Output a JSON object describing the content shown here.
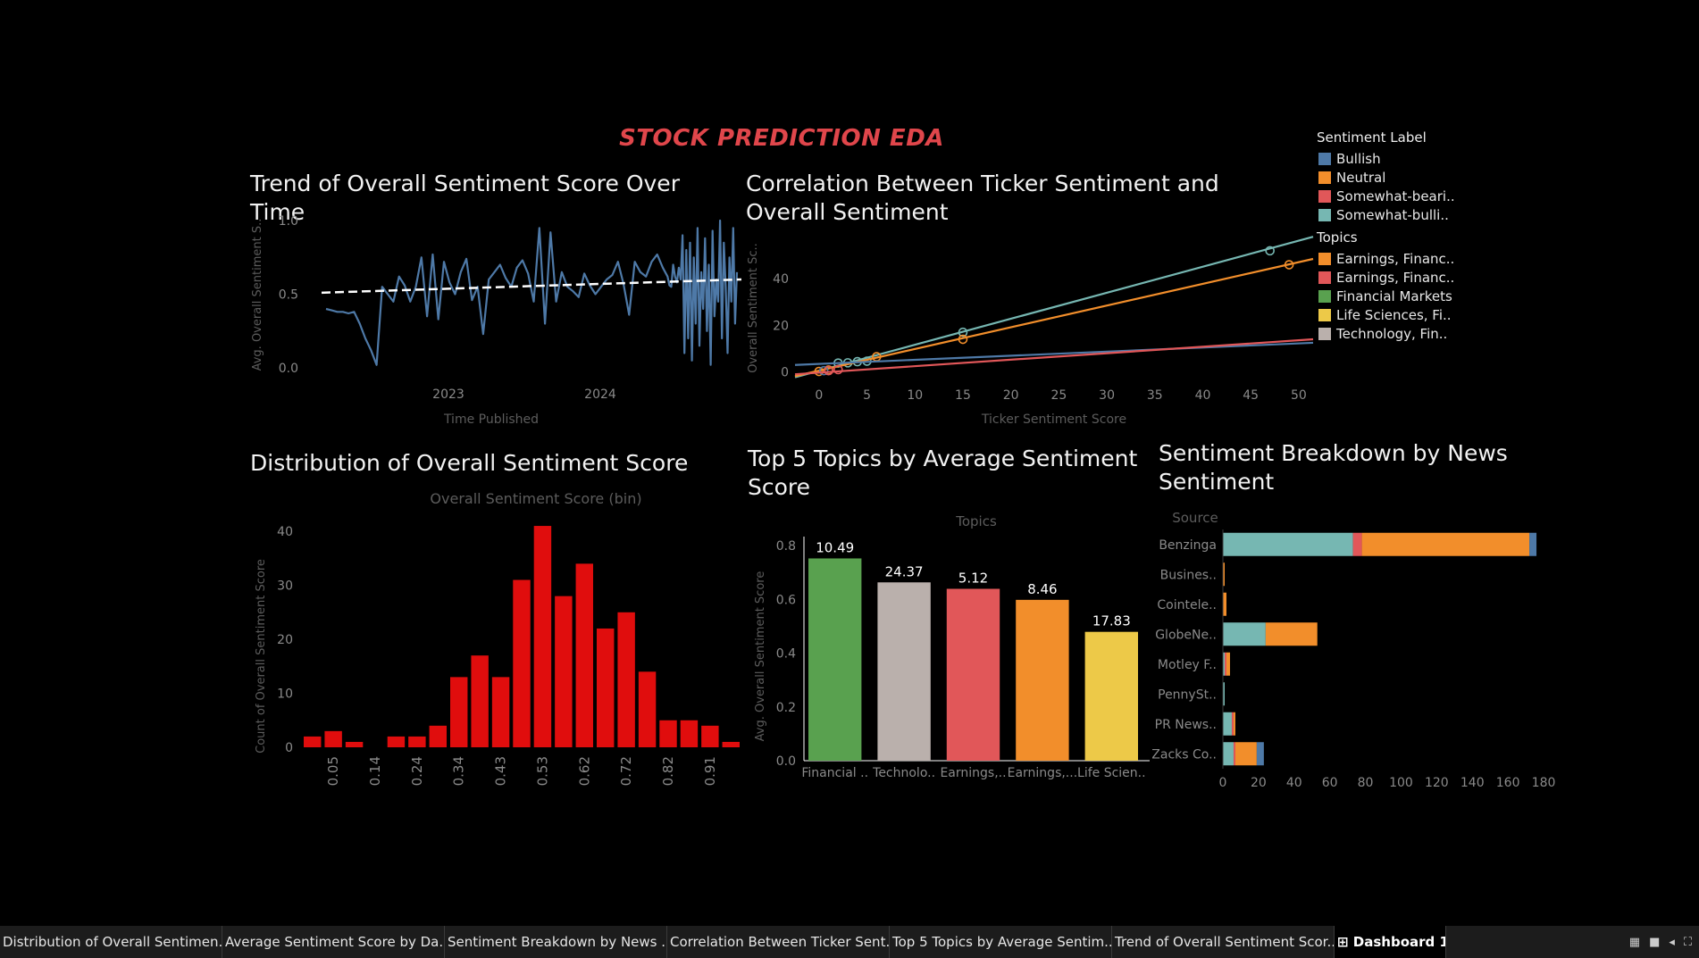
{
  "dashboard_title": "STOCK PREDICTION EDA",
  "colors": {
    "bullish": "#4e79a7",
    "neutral": "#f28e2b",
    "somewhat_bearish": "#e15759",
    "somewhat_bullish": "#76b7b2",
    "financial_markets": "#59a14f",
    "technology": "#bab0ac",
    "life_sciences": "#edc948",
    "hist_bar": "#e00d0d",
    "trend_line": "#4e79a7"
  },
  "legend": {
    "sentiment_title": "Sentiment Label",
    "sentiment_items": [
      {
        "label": "Bullish",
        "color": "#4e79a7"
      },
      {
        "label": "Neutral",
        "color": "#f28e2b"
      },
      {
        "label": "Somewhat-beari..",
        "color": "#e15759"
      },
      {
        "label": "Somewhat-bulli..",
        "color": "#76b7b2"
      }
    ],
    "topics_title": "Topics",
    "topic_items": [
      {
        "label": "Earnings, Financ..",
        "color": "#f28e2b"
      },
      {
        "label": "Earnings, Financ..",
        "color": "#e15759"
      },
      {
        "label": "Financial Markets",
        "color": "#59a14f"
      },
      {
        "label": "Life Sciences, Fi..",
        "color": "#edc948"
      },
      {
        "label": "Technology, Fin..",
        "color": "#bab0ac"
      }
    ]
  },
  "chart_data": [
    {
      "id": "trend",
      "type": "line",
      "title": "Trend of Overall Sentiment Score Over Time",
      "xlabel": "Time Published",
      "ylabel": "Avg. Overall Sentiment S..",
      "xticks": [
        "2023",
        "2024"
      ],
      "yticks": [
        "0.0",
        "0.5",
        "1.0"
      ],
      "ylim": [
        0,
        1
      ],
      "values": [
        0.4,
        0.39,
        0.38,
        0.38,
        0.37,
        0.38,
        0.3,
        0.2,
        0.12,
        0.02,
        0.55,
        0.5,
        0.45,
        0.62,
        0.56,
        0.45,
        0.55,
        0.75,
        0.35,
        0.77,
        0.33,
        0.72,
        0.58,
        0.5,
        0.65,
        0.74,
        0.46,
        0.55,
        0.23,
        0.6,
        0.65,
        0.7,
        0.61,
        0.55,
        0.68,
        0.73,
        0.64,
        0.45,
        0.95,
        0.3,
        0.92,
        0.45,
        0.65,
        0.55,
        0.52,
        0.48,
        0.64,
        0.56,
        0.5,
        0.55,
        0.6,
        0.63,
        0.72,
        0.57,
        0.36,
        0.72,
        0.65,
        0.62,
        0.72,
        0.77,
        0.68,
        0.62,
        0.56,
        0.55,
        0.7,
        0.62,
        0.58,
        0.68,
        0.6,
        0.9,
        0.1,
        0.8,
        0.2,
        0.85,
        0.05,
        0.75,
        0.3,
        0.95,
        0.15,
        0.65,
        0.4,
        0.88,
        0.25,
        0.7,
        0.02,
        0.93,
        0.35,
        0.6,
        0.45,
        1.0,
        0.2,
        0.85,
        0.55,
        0.1,
        0.75,
        0.45,
        0.95,
        0.3,
        0.65
      ],
      "trend_start": 0.51,
      "trend_end": 0.6
    },
    {
      "id": "correlation",
      "type": "scatter",
      "title": "Correlation Between Ticker Sentiment and Overall Sentiment",
      "xlabel": "Ticker Sentiment Score",
      "ylabel": "Overall Sentiment Sc..",
      "xticks": [
        0,
        5,
        10,
        15,
        20,
        25,
        30,
        35,
        40,
        45,
        50
      ],
      "yticks": [
        0,
        20,
        40
      ],
      "xlim": [
        -2.5,
        51.5
      ],
      "ylim": [
        -4,
        60
      ],
      "series": [
        {
          "color": "#76b7b2",
          "line": [
            [
              -2.5,
              -2.3
            ],
            [
              51.5,
              58
            ]
          ],
          "points": [
            [
              2,
              3.8
            ],
            [
              3,
              3.9
            ],
            [
              4,
              4.4
            ],
            [
              5,
              4.6
            ],
            [
              15,
              17
            ],
            [
              47,
              52
            ]
          ]
        },
        {
          "color": "#f28e2b",
          "line": [
            [
              -2.5,
              -1.8
            ],
            [
              51.5,
              48.5
            ]
          ],
          "points": [
            [
              0,
              0.2
            ],
            [
              1,
              0.8
            ],
            [
              6,
              6.5
            ],
            [
              15,
              14
            ],
            [
              49,
              46
            ]
          ]
        },
        {
          "color": "#4e79a7",
          "line": [
            [
              -2.5,
              3
            ],
            [
              51.5,
              12.5
            ]
          ],
          "points": [
            [
              0.5,
              0.5
            ]
          ]
        },
        {
          "color": "#e15759",
          "line": [
            [
              -2.5,
              -1
            ],
            [
              51.5,
              14
            ]
          ],
          "points": [
            [
              1,
              0.5
            ],
            [
              2,
              1
            ]
          ]
        }
      ]
    },
    {
      "id": "distribution",
      "type": "bar",
      "title": "Distribution of Overall Sentiment Score",
      "subtitle": "Overall Sentiment Score (bin)",
      "ylabel": "Count of Overall Sentiment Score",
      "xticks": [
        "0.05",
        "0.14",
        "0.24",
        "0.34",
        "0.43",
        "0.53",
        "0.62",
        "0.72",
        "0.82",
        "0.91"
      ],
      "yticks": [
        0,
        10,
        20,
        30,
        40
      ],
      "ylim": [
        0,
        42
      ],
      "values": [
        2,
        3,
        1,
        0,
        2,
        2,
        4,
        13,
        17,
        13,
        31,
        41,
        28,
        34,
        22,
        25,
        14,
        5,
        5,
        4,
        1
      ]
    },
    {
      "id": "topics",
      "type": "bar",
      "title": "Top 5 Topics by Average Sentiment Score",
      "subtitle": "Topics",
      "ylabel": "Avg. Overall Sentiment Score",
      "categories": [
        "Financial ..",
        "Technolo..",
        "Earnings,..",
        "Earnings,...",
        "Life Scien.."
      ],
      "values": [
        0.752,
        0.663,
        0.639,
        0.598,
        0.479
      ],
      "data_labels": [
        "10.49",
        "24.37",
        "5.12",
        "8.46",
        "17.83"
      ],
      "colors": [
        "#59a14f",
        "#bab0ac",
        "#e15759",
        "#f28e2b",
        "#edc948"
      ],
      "yticks": [
        "0.0",
        "0.2",
        "0.4",
        "0.6",
        "0.8"
      ],
      "ylim": [
        0,
        0.8
      ]
    },
    {
      "id": "breakdown",
      "type": "bar",
      "orientation": "horizontal",
      "stacked": true,
      "title": "Sentiment Breakdown by News Sentiment",
      "subtitle": "Source",
      "categories": [
        "Benzinga",
        "Busines..",
        "Cointele..",
        "GlobeNe..",
        "Motley F..",
        "PennySt..",
        "PR News..",
        "Zacks Co.."
      ],
      "xticks": [
        0,
        20,
        40,
        60,
        80,
        100,
        120,
        140,
        160,
        180
      ],
      "xlim": [
        0,
        185
      ],
      "series": [
        {
          "name": "Somewhat-bullish",
          "color": "#76b7b2",
          "values": [
            73,
            0,
            0,
            24,
            1,
            1,
            5,
            6
          ]
        },
        {
          "name": "Somewhat-bearish",
          "color": "#e15759",
          "values": [
            5,
            0,
            0,
            0,
            1,
            0,
            1,
            1
          ]
        },
        {
          "name": "Neutral",
          "color": "#f28e2b",
          "values": [
            94,
            1,
            2,
            29,
            2,
            0,
            1,
            12
          ]
        },
        {
          "name": "Bullish",
          "color": "#4e79a7",
          "values": [
            4,
            0,
            0,
            0,
            0,
            0,
            0,
            4
          ]
        }
      ]
    }
  ],
  "tabs": [
    {
      "label": "Distribution of Overall Sentimen...",
      "active": false
    },
    {
      "label": "Average Sentiment Score by Da...",
      "active": false
    },
    {
      "label": "Sentiment Breakdown by News ...",
      "active": false
    },
    {
      "label": "Correlation Between Ticker Sent...",
      "active": false
    },
    {
      "label": "Top 5 Topics by Average Sentim...",
      "active": false
    },
    {
      "label": "Trend of Overall Sentiment Scor...",
      "active": false
    },
    {
      "label": "Dashboard 1",
      "active": true
    }
  ]
}
